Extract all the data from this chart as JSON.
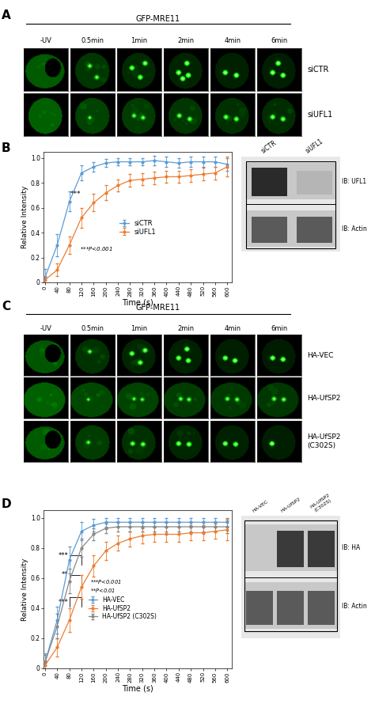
{
  "panel_labels": [
    "A",
    "B",
    "C",
    "D"
  ],
  "gfp_mre11": "GFP-MRE11",
  "time_labels": [
    "-UV",
    "0.5min",
    "1min",
    "2min",
    "4min",
    "6min"
  ],
  "row_labels_A": [
    "siCTR",
    "siUFL1"
  ],
  "row_labels_C": [
    "HA-VEC",
    "HA-UfSP2",
    "HA-UfSP2\n(C302S)"
  ],
  "time_x": [
    0,
    40,
    80,
    120,
    160,
    200,
    240,
    280,
    320,
    360,
    400,
    440,
    480,
    520,
    560,
    600
  ],
  "siCTR_y": [
    0.04,
    0.3,
    0.65,
    0.88,
    0.93,
    0.96,
    0.97,
    0.97,
    0.97,
    0.98,
    0.97,
    0.96,
    0.97,
    0.97,
    0.97,
    0.95
  ],
  "siUFL1_y": [
    0.02,
    0.1,
    0.3,
    0.52,
    0.64,
    0.72,
    0.78,
    0.82,
    0.83,
    0.84,
    0.85,
    0.85,
    0.86,
    0.87,
    0.88,
    0.93
  ],
  "siCTR_err": [
    0.07,
    0.09,
    0.08,
    0.06,
    0.04,
    0.03,
    0.03,
    0.03,
    0.03,
    0.04,
    0.04,
    0.04,
    0.04,
    0.04,
    0.04,
    0.05
  ],
  "siUFL1_err": [
    0.03,
    0.05,
    0.07,
    0.08,
    0.07,
    0.06,
    0.05,
    0.05,
    0.05,
    0.05,
    0.05,
    0.05,
    0.05,
    0.05,
    0.05,
    0.08
  ],
  "siCTR_color": "#5b9bd5",
  "siUFL1_color": "#ed7d31",
  "havec_y": [
    0.04,
    0.32,
    0.72,
    0.91,
    0.95,
    0.97,
    0.97,
    0.97,
    0.97,
    0.97,
    0.97,
    0.97,
    0.97,
    0.97,
    0.97,
    0.97
  ],
  "haufsp2_y": [
    0.02,
    0.14,
    0.32,
    0.54,
    0.68,
    0.78,
    0.83,
    0.86,
    0.88,
    0.89,
    0.89,
    0.89,
    0.9,
    0.9,
    0.91,
    0.92
  ],
  "haufsp2c302s_y": [
    0.04,
    0.28,
    0.58,
    0.8,
    0.89,
    0.93,
    0.94,
    0.94,
    0.94,
    0.94,
    0.94,
    0.94,
    0.94,
    0.94,
    0.94,
    0.94
  ],
  "havec_err": [
    0.06,
    0.09,
    0.09,
    0.06,
    0.04,
    0.03,
    0.03,
    0.03,
    0.03,
    0.03,
    0.03,
    0.03,
    0.03,
    0.03,
    0.03,
    0.03
  ],
  "haufsp2_err": [
    0.03,
    0.06,
    0.08,
    0.08,
    0.07,
    0.06,
    0.05,
    0.05,
    0.05,
    0.05,
    0.05,
    0.05,
    0.05,
    0.05,
    0.05,
    0.07
  ],
  "haufsp2c302s_err": [
    0.05,
    0.08,
    0.08,
    0.06,
    0.04,
    0.03,
    0.03,
    0.03,
    0.03,
    0.03,
    0.03,
    0.03,
    0.03,
    0.03,
    0.03,
    0.04
  ],
  "havec_color": "#5b9bd5",
  "haufsp2_color": "#ed7d31",
  "haufsp2c302s_color": "#888888",
  "xlabel": "Time (s)",
  "ylabel": "Relative Intensity",
  "xticklabels": [
    "0",
    "40",
    "80",
    "120",
    "160",
    "200",
    "240",
    "280",
    "320",
    "360",
    "400",
    "440",
    "480",
    "520",
    "560",
    "600"
  ],
  "ylim": [
    0,
    1.05
  ],
  "xlim": [
    -5,
    615
  ],
  "bg_color": "#000000",
  "cell_green": "#00aa00",
  "foci_green": "#00ff00",
  "foci_bright": "#88ff88"
}
